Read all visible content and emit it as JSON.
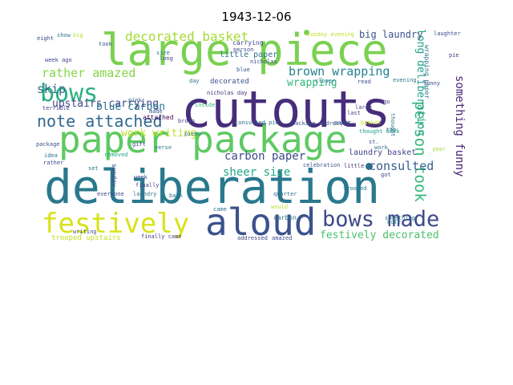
{
  "figure": {
    "title": "1943-12-06"
  },
  "words": [
    {
      "text": "deliberation",
      "color": "#2a788e"
    },
    {
      "text": "cutouts",
      "color": "#472d7b"
    },
    {
      "text": "large piece",
      "color": "#7ad151"
    },
    {
      "text": "paper package",
      "color": "#5ec962"
    },
    {
      "text": "aloud",
      "color": "#3b528b"
    },
    {
      "text": "festively",
      "color": "#d8e219"
    },
    {
      "text": "bows made",
      "color": "#3e4989"
    },
    {
      "text": "bows",
      "color": "#2ab07f"
    },
    {
      "text": "note attached",
      "color": "#31688e"
    },
    {
      "text": "person took",
      "color": "#35b779"
    },
    {
      "text": "decorated basket",
      "color": "#a5db36"
    },
    {
      "text": "brown wrapping",
      "color": "#26828e"
    },
    {
      "text": "rather amazed",
      "color": "#86d549"
    },
    {
      "text": "upstairs carrying",
      "color": "#404688"
    },
    {
      "text": "blue carbon",
      "color": "#2c728e"
    },
    {
      "text": "carbon paper",
      "color": "#3e4a89"
    },
    {
      "text": "sheer size",
      "color": "#22a785"
    },
    {
      "text": "work writing",
      "color": "#bddf26"
    },
    {
      "text": "consulted",
      "color": "#355f8d"
    },
    {
      "text": "festively decorated",
      "color": "#4ac16d"
    },
    {
      "text": "skip",
      "color": "#31688e"
    },
    {
      "text": "something funny",
      "color": "#482475"
    },
    {
      "text": "long deliberation",
      "color": "#1fa187"
    },
    {
      "text": "big laundry",
      "color": "#3b528b"
    },
    {
      "text": "wrapping",
      "color": "#2fb47c"
    },
    {
      "text": "laundry basket",
      "color": "#414487"
    },
    {
      "text": "little paper",
      "color": "#2d708e"
    },
    {
      "text": "attached",
      "color": "#440154"
    },
    {
      "text": "decorated",
      "color": "#3b528b"
    },
    {
      "text": "nicholas day",
      "color": "#46327e"
    },
    {
      "text": "trooped upstairs",
      "color": "#c2df23"
    },
    {
      "text": "finally came",
      "color": "#433e85"
    },
    {
      "text": "carrying",
      "color": "#404688"
    },
    {
      "text": "nicholas",
      "color": "#3e4989"
    },
    {
      "text": "sunday evening",
      "color": "#bddf26"
    },
    {
      "text": "laughter",
      "color": "#3b528b"
    },
    {
      "text": "wrapping paper",
      "color": "#2a788e"
    },
    {
      "text": "little",
      "color": "#46327e"
    },
    {
      "text": "carbon",
      "color": "#2c728e"
    },
    {
      "text": "removed",
      "color": "#22a785"
    },
    {
      "text": "consulted pie",
      "color": "#2d708e"
    },
    {
      "text": "package addressed",
      "color": "#3b528b"
    },
    {
      "text": "thought back",
      "color": "#1f9e89"
    },
    {
      "text": "eight",
      "color": "#3e4989"
    },
    {
      "text": "show",
      "color": "#2a788e"
    },
    {
      "text": "big",
      "color": "#b5de2b"
    },
    {
      "text": "took",
      "color": "#3b528b"
    },
    {
      "text": "size",
      "color": "#2c728e"
    },
    {
      "text": "long",
      "color": "#3e4989"
    },
    {
      "text": "week ago",
      "color": "#414487"
    },
    {
      "text": "pink",
      "color": "#31688e"
    },
    {
      "text": "made",
      "color": "#3b528b"
    },
    {
      "text": "inside",
      "color": "#35b779"
    },
    {
      "text": "terrible",
      "color": "#414487"
    },
    {
      "text": "package",
      "color": "#3b528b"
    },
    {
      "text": "idea",
      "color": "#2c728e"
    },
    {
      "text": "rather",
      "color": "#3e4989"
    },
    {
      "text": "gift",
      "color": "#414487"
    },
    {
      "text": "set",
      "color": "#2a788e"
    },
    {
      "text": "week",
      "color": "#3b528b"
    },
    {
      "text": "finally",
      "color": "#414487"
    },
    {
      "text": "laundry",
      "color": "#2c728e"
    },
    {
      "text": "everyone",
      "color": "#3e4989"
    },
    {
      "text": "back",
      "color": "#2a788e"
    },
    {
      "text": "writing",
      "color": "#3b528b"
    },
    {
      "text": "came",
      "color": "#2c728e"
    },
    {
      "text": "addressed",
      "color": "#414487"
    },
    {
      "text": "amazed",
      "color": "#3e4989"
    },
    {
      "text": "note",
      "color": "#2a788e"
    },
    {
      "text": "would",
      "color": "#bddf26"
    },
    {
      "text": "quarter",
      "color": "#2c728e"
    },
    {
      "text": "celebration",
      "color": "#3b528b"
    },
    {
      "text": "trooped",
      "color": "#2a788e"
    },
    {
      "text": "got",
      "color": "#3e4989"
    },
    {
      "text": "year",
      "color": "#a5db36"
    },
    {
      "text": "last",
      "color": "#414487"
    },
    {
      "text": "top",
      "color": "#2c728e"
    },
    {
      "text": "st.",
      "color": "#3b528b"
    },
    {
      "text": "work",
      "color": "#2a788e"
    },
    {
      "text": "ago",
      "color": "#3e4989"
    },
    {
      "text": "large",
      "color": "#414487"
    },
    {
      "text": "closer",
      "color": "#2c728e"
    },
    {
      "text": "read",
      "color": "#3b528b"
    },
    {
      "text": "evening",
      "color": "#2a788e"
    },
    {
      "text": "funny",
      "color": "#3e4989"
    },
    {
      "text": "pie",
      "color": "#414487"
    },
    {
      "text": "piece",
      "color": "#2c728e"
    },
    {
      "text": "blue",
      "color": "#3b528b"
    },
    {
      "text": "day",
      "color": "#2a788e"
    },
    {
      "text": "person",
      "color": "#3e4989"
    },
    {
      "text": "brown",
      "color": "#414487"
    },
    {
      "text": "something",
      "color": "#2c728e"
    },
    {
      "text": "paper",
      "color": "#3b528b"
    },
    {
      "text": "verse",
      "color": "#2a788e"
    },
    {
      "text": "sunday",
      "color": "#3e4989"
    },
    {
      "text": "basket",
      "color": "#c2df23"
    },
    {
      "text": "thought",
      "color": "#2a788e"
    }
  ]
}
